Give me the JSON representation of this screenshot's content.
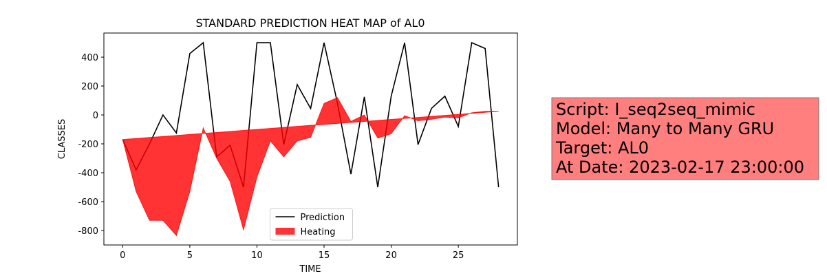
{
  "chart_data": {
    "type": "line",
    "title": "STANDARD PREDICTION HEAT MAP of AL0",
    "x_label": "TIME",
    "y_label": "CLASSES",
    "x": [
      0,
      1,
      2,
      3,
      4,
      5,
      6,
      7,
      8,
      9,
      10,
      11,
      12,
      13,
      14,
      15,
      16,
      17,
      18,
      19,
      20,
      21,
      22,
      23,
      24,
      25,
      26,
      27,
      28
    ],
    "series": [
      {
        "name": "Prediction",
        "type": "line",
        "color": "#000000",
        "values": [
          -170,
          -380,
          -200,
          0,
          -125,
          425,
          500,
          -290,
          -210,
          -500,
          500,
          500,
          -205,
          210,
          45,
          500,
          80,
          -410,
          125,
          -500,
          130,
          500,
          -205,
          45,
          130,
          -80,
          500,
          460,
          -500
        ]
      },
      {
        "name": "Heating",
        "type": "area",
        "color": "#ff0000",
        "opacity": 0.8,
        "values": [
          -170,
          -530,
          -730,
          -730,
          -835,
          -530,
          -90,
          -300,
          -460,
          -795,
          -430,
          -180,
          -290,
          -180,
          -155,
          80,
          120,
          -45,
          0,
          -160,
          -130,
          -5,
          -40,
          -30,
          -15,
          -20,
          15,
          25,
          25
        ],
        "base": [
          -170,
          -163,
          -156,
          -149,
          -142,
          -135,
          -128,
          -121,
          -114,
          -107,
          -100,
          -93,
          -86,
          -79,
          -72,
          -66,
          -59,
          -52,
          -45,
          -38,
          -31,
          -24,
          -17,
          -10,
          -3,
          4,
          11,
          18,
          25
        ]
      }
    ],
    "xlim": [
      -1.4,
      29.4
    ],
    "ylim": [
      -900,
      567
    ],
    "xticks": [
      0,
      5,
      10,
      15,
      20,
      25
    ],
    "yticks": [
      -800,
      -600,
      -400,
      -200,
      0,
      200,
      400
    ],
    "legend": "lower center",
    "annotation": {
      "lines": [
        "Script: I_seq2seq_mimic",
        "Model: Many to Many GRU",
        "Target: AL0",
        "At Date: 2023-02-17 23:00:00"
      ],
      "color": "#ff7f7f"
    }
  }
}
